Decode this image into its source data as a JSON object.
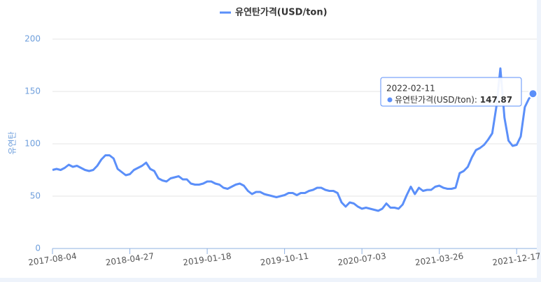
{
  "chart_data": {
    "type": "line",
    "y_axis_title": "유연탄",
    "legend": "top",
    "grid": true,
    "x": [
      "2017-08-04",
      "2017-08-18",
      "2017-09-01",
      "2017-09-15",
      "2017-09-29",
      "2017-10-13",
      "2017-10-27",
      "2017-11-10",
      "2017-11-24",
      "2017-12-08",
      "2017-12-22",
      "2018-01-05",
      "2018-01-19",
      "2018-02-02",
      "2018-02-16",
      "2018-03-02",
      "2018-03-16",
      "2018-03-30",
      "2018-04-13",
      "2018-04-27",
      "2018-05-11",
      "2018-05-25",
      "2018-06-08",
      "2018-06-22",
      "2018-07-06",
      "2018-07-20",
      "2018-08-03",
      "2018-08-17",
      "2018-08-31",
      "2018-09-14",
      "2018-09-28",
      "2018-10-12",
      "2018-10-26",
      "2018-11-09",
      "2018-11-23",
      "2018-12-07",
      "2018-12-21",
      "2019-01-04",
      "2019-01-18",
      "2019-02-01",
      "2019-02-15",
      "2019-03-01",
      "2019-03-15",
      "2019-03-29",
      "2019-04-12",
      "2019-04-26",
      "2019-05-10",
      "2019-05-24",
      "2019-06-07",
      "2019-06-21",
      "2019-07-05",
      "2019-07-19",
      "2019-08-02",
      "2019-08-16",
      "2019-08-30",
      "2019-09-13",
      "2019-09-27",
      "2019-10-11",
      "2019-10-25",
      "2019-11-08",
      "2019-11-22",
      "2019-12-06",
      "2019-12-20",
      "2020-01-03",
      "2020-01-17",
      "2020-01-31",
      "2020-02-14",
      "2020-02-28",
      "2020-03-13",
      "2020-03-27",
      "2020-04-10",
      "2020-04-24",
      "2020-05-08",
      "2020-05-22",
      "2020-06-05",
      "2020-06-19",
      "2020-07-03",
      "2020-07-17",
      "2020-07-31",
      "2020-08-14",
      "2020-08-28",
      "2020-09-11",
      "2020-09-25",
      "2020-10-09",
      "2020-10-23",
      "2020-11-06",
      "2020-11-20",
      "2020-12-04",
      "2020-12-18",
      "2021-01-01",
      "2021-01-15",
      "2021-01-29",
      "2021-02-12",
      "2021-02-26",
      "2021-03-12",
      "2021-03-26",
      "2021-04-09",
      "2021-04-23",
      "2021-05-07",
      "2021-05-21",
      "2021-06-04",
      "2021-06-18",
      "2021-07-02",
      "2021-07-16",
      "2021-07-30",
      "2021-08-13",
      "2021-08-27",
      "2021-09-10",
      "2021-09-24",
      "2021-10-08",
      "2021-10-22",
      "2021-11-05",
      "2021-11-19",
      "2021-12-03",
      "2021-12-17",
      "2021-12-31",
      "2022-01-14",
      "2022-01-28",
      "2022-02-11"
    ],
    "series": [
      {
        "name": "유연탄가격(USD/ton)",
        "color": "#5b8ff9",
        "values": [
          75,
          76,
          75,
          77,
          80,
          78,
          79,
          77,
          75,
          74,
          75,
          79,
          85,
          89,
          89,
          86,
          76,
          73,
          70,
          71,
          75,
          77,
          79,
          82,
          76,
          74,
          67,
          65,
          64,
          67,
          68,
          69,
          66,
          66,
          62,
          61,
          61,
          62,
          64,
          64,
          62,
          61,
          58,
          57,
          59,
          61,
          62,
          60,
          55,
          52,
          54,
          54,
          52,
          51,
          50,
          49,
          50,
          51,
          53,
          53,
          51,
          53,
          53,
          55,
          56,
          58,
          58,
          56,
          55,
          55,
          53,
          44,
          40,
          44,
          43,
          40,
          38,
          39,
          38,
          37,
          36,
          38,
          43,
          39,
          39,
          38,
          42,
          51,
          59,
          52,
          58,
          55,
          56,
          56,
          59,
          60,
          58,
          57,
          57,
          58,
          72,
          74,
          78,
          87,
          94,
          96,
          99,
          104,
          110,
          135,
          172,
          125,
          103,
          98,
          99,
          107,
          135,
          143,
          147.87
        ]
      }
    ],
    "xlim": [
      "2017-08-04",
      "2022-02-11"
    ],
    "xticks": [
      "2017-08-04",
      "2018-04-27",
      "2019-01-18",
      "2019-10-11",
      "2020-07-03",
      "2021-03-26",
      "2021-12-17"
    ],
    "ylim": [
      0,
      200
    ],
    "yticks": [
      0,
      50,
      100,
      150,
      200
    ]
  }
}
